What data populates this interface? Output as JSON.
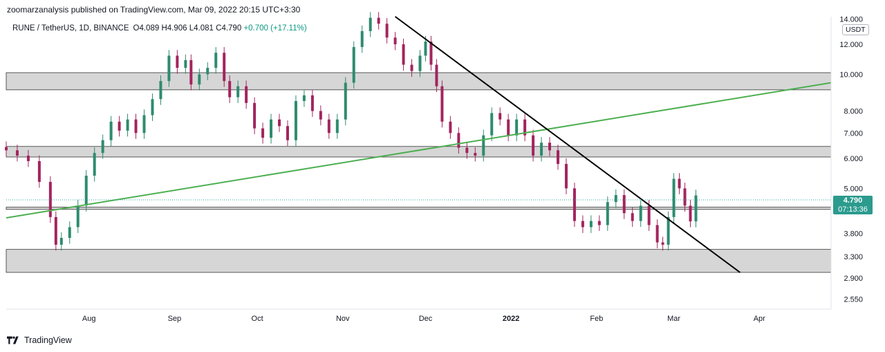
{
  "header": {
    "caption": "zoomarzanalysis published on TradingView.com, Mar 09, 2022 20:15 UTC+3:30"
  },
  "legend": {
    "symbol": "RUNE / TetherUS, 1D, BINANCE",
    "open": "O4.089",
    "high": "H4.906",
    "low": "L4.081",
    "close": "C4.790",
    "change": "+0.700 (+17.11%)"
  },
  "currency": "USDT",
  "last_price": "4.790",
  "countdown": "07:13:36",
  "footer": {
    "brand": "TradingView"
  },
  "colors": {
    "up": "#2e8b6f",
    "down": "#a3245e",
    "zone_fill": "#d6d6d6",
    "trend_green": "#4caf50",
    "trend_black": "#000000",
    "price_line": "#26a69a"
  },
  "chart_data": {
    "type": "candlestick",
    "y_scale": "log",
    "ylim": [
      2.4,
      14.2
    ],
    "y_ticks": [
      "14.000",
      "12.000",
      "10.000",
      "8.000",
      "7.000",
      "6.000",
      "5.000",
      "4.400",
      "3.800",
      "3.300",
      "2.900",
      "2.550"
    ],
    "x_ticks": [
      "Aug",
      "Sep",
      "Oct",
      "Nov",
      "Dec",
      "2022",
      "Feb",
      "Mar",
      "Apr"
    ],
    "x_range": [
      "2021-07-02",
      "2022-04-27"
    ],
    "zones": [
      {
        "from": 9.1,
        "to": 10.1
      },
      {
        "from": 6.05,
        "to": 6.45
      },
      {
        "from": 3.0,
        "to": 3.45
      },
      {
        "from": 4.4,
        "to": 4.46
      }
    ],
    "trend_lines": [
      {
        "color": "green",
        "points": [
          [
            "2021-07-02",
            4.18
          ],
          [
            "2022-04-27",
            9.5
          ]
        ]
      },
      {
        "color": "black",
        "points": [
          [
            "2021-11-20",
            14.2
          ],
          [
            "2022-03-25",
            3.0
          ]
        ]
      }
    ],
    "candles": [
      {
        "d": "2021-07-02",
        "c": 6.3
      },
      {
        "d": "2021-07-06",
        "c": 6.1
      },
      {
        "d": "2021-07-10",
        "c": 5.9
      },
      {
        "d": "2021-07-14",
        "c": 5.2
      },
      {
        "d": "2021-07-18",
        "c": 4.2
      },
      {
        "d": "2021-07-20",
        "c": 3.55
      },
      {
        "d": "2021-07-22",
        "c": 3.7
      },
      {
        "d": "2021-07-25",
        "c": 3.95
      },
      {
        "d": "2021-07-28",
        "c": 4.5
      },
      {
        "d": "2021-07-31",
        "c": 5.4
      },
      {
        "d": "2021-08-03",
        "c": 6.2
      },
      {
        "d": "2021-08-06",
        "c": 6.7
      },
      {
        "d": "2021-08-09",
        "c": 7.5
      },
      {
        "d": "2021-08-12",
        "c": 7.1
      },
      {
        "d": "2021-08-15",
        "c": 7.6
      },
      {
        "d": "2021-08-18",
        "c": 7.0
      },
      {
        "d": "2021-08-21",
        "c": 7.8
      },
      {
        "d": "2021-08-24",
        "c": 8.6
      },
      {
        "d": "2021-08-27",
        "c": 9.6
      },
      {
        "d": "2021-08-30",
        "c": 11.2
      },
      {
        "d": "2021-09-02",
        "c": 10.4
      },
      {
        "d": "2021-09-05",
        "c": 10.9
      },
      {
        "d": "2021-09-07",
        "c": 9.4
      },
      {
        "d": "2021-09-10",
        "c": 10.0
      },
      {
        "d": "2021-09-13",
        "c": 10.4
      },
      {
        "d": "2021-09-16",
        "c": 11.4
      },
      {
        "d": "2021-09-19",
        "c": 9.6
      },
      {
        "d": "2021-09-21",
        "c": 8.7
      },
      {
        "d": "2021-09-24",
        "c": 9.3
      },
      {
        "d": "2021-09-27",
        "c": 8.4
      },
      {
        "d": "2021-09-30",
        "c": 7.2
      },
      {
        "d": "2021-10-03",
        "c": 6.8
      },
      {
        "d": "2021-10-06",
        "c": 7.6
      },
      {
        "d": "2021-10-09",
        "c": 7.3
      },
      {
        "d": "2021-10-12",
        "c": 6.7
      },
      {
        "d": "2021-10-15",
        "c": 8.5
      },
      {
        "d": "2021-10-18",
        "c": 8.8
      },
      {
        "d": "2021-10-21",
        "c": 8.0
      },
      {
        "d": "2021-10-24",
        "c": 7.6
      },
      {
        "d": "2021-10-27",
        "c": 7.0
      },
      {
        "d": "2021-10-30",
        "c": 7.6
      },
      {
        "d": "2021-11-02",
        "c": 9.5
      },
      {
        "d": "2021-11-05",
        "c": 11.8
      },
      {
        "d": "2021-11-08",
        "c": 13.0
      },
      {
        "d": "2021-11-11",
        "c": 14.1
      },
      {
        "d": "2021-11-14",
        "c": 13.6
      },
      {
        "d": "2021-11-17",
        "c": 12.5
      },
      {
        "d": "2021-11-20",
        "c": 12.0
      },
      {
        "d": "2021-11-23",
        "c": 10.6
      },
      {
        "d": "2021-11-26",
        "c": 10.2
      },
      {
        "d": "2021-11-29",
        "c": 11.2
      },
      {
        "d": "2021-12-01",
        "c": 12.2
      },
      {
        "d": "2021-12-03",
        "c": 10.6
      },
      {
        "d": "2021-12-05",
        "c": 9.3
      },
      {
        "d": "2021-12-07",
        "c": 7.5
      },
      {
        "d": "2021-12-10",
        "c": 7.0
      },
      {
        "d": "2021-12-13",
        "c": 6.4
      },
      {
        "d": "2021-12-16",
        "c": 6.2
      },
      {
        "d": "2021-12-19",
        "c": 6.1
      },
      {
        "d": "2021-12-22",
        "c": 6.9
      },
      {
        "d": "2021-12-25",
        "c": 7.9
      },
      {
        "d": "2021-12-28",
        "c": 7.6
      },
      {
        "d": "2021-12-31",
        "c": 6.9
      },
      {
        "d": "2022-01-03",
        "c": 7.6
      },
      {
        "d": "2022-01-06",
        "c": 6.9
      },
      {
        "d": "2022-01-09",
        "c": 6.1
      },
      {
        "d": "2022-01-12",
        "c": 6.6
      },
      {
        "d": "2022-01-15",
        "c": 6.3
      },
      {
        "d": "2022-01-18",
        "c": 5.8
      },
      {
        "d": "2022-01-21",
        "c": 5.0
      },
      {
        "d": "2022-01-24",
        "c": 4.1
      },
      {
        "d": "2022-01-27",
        "c": 3.95
      },
      {
        "d": "2022-01-30",
        "c": 4.1
      },
      {
        "d": "2022-02-02",
        "c": 4.0
      },
      {
        "d": "2022-02-05",
        "c": 4.6
      },
      {
        "d": "2022-02-08",
        "c": 4.8
      },
      {
        "d": "2022-02-11",
        "c": 4.3
      },
      {
        "d": "2022-02-14",
        "c": 4.1
      },
      {
        "d": "2022-02-17",
        "c": 4.5
      },
      {
        "d": "2022-02-20",
        "c": 4.0
      },
      {
        "d": "2022-02-23",
        "c": 3.6
      },
      {
        "d": "2022-02-25",
        "c": 3.55
      },
      {
        "d": "2022-02-27",
        "c": 4.2
      },
      {
        "d": "2022-03-01",
        "c": 5.3
      },
      {
        "d": "2022-03-03",
        "c": 5.0
      },
      {
        "d": "2022-03-05",
        "c": 4.5
      },
      {
        "d": "2022-03-07",
        "c": 4.09
      },
      {
        "d": "2022-03-09",
        "c": 4.79
      }
    ]
  }
}
